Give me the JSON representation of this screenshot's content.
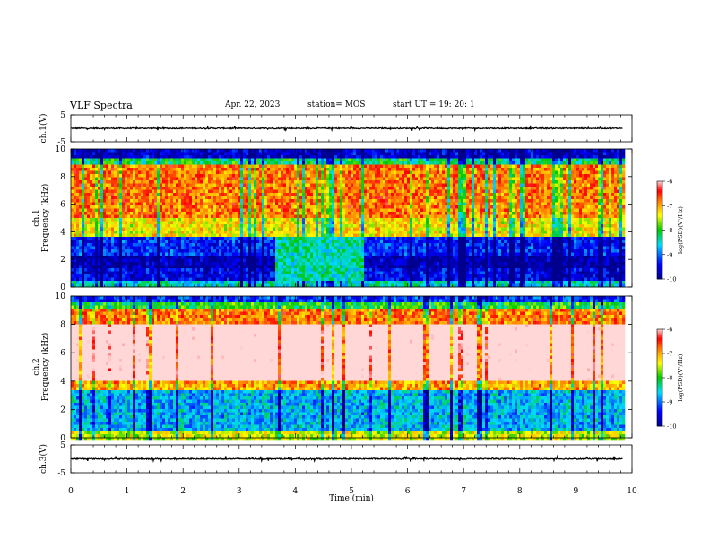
{
  "header": {
    "title": "VLF Spectra",
    "date": "Apr. 22, 2023",
    "station": "station= MOS",
    "start": "start  UT =   19: 20: 1"
  },
  "colors": {
    "low": "#00008c",
    "mid_low": "#00c8ff",
    "mid": "#00c800",
    "mid_high": "#ffff00",
    "high": "#ff0000",
    "saturated": "#ffd0d0"
  },
  "chart_data": [
    {
      "type": "line",
      "name": "ch1-waveform",
      "ylabel": "ch.1(V)",
      "ylim": [
        -5,
        5
      ],
      "yticks": [
        "5",
        "-5"
      ],
      "xlim": [
        0,
        10
      ],
      "level": 0
    },
    {
      "type": "heatmap",
      "name": "ch1-spectrogram",
      "ylabel": "ch.1\nFrequency (kHz)",
      "ylabel_line1": "ch.1",
      "ylabel_line2": "Frequency (kHz)",
      "xlim": [
        0,
        9.85
      ],
      "ylim": [
        0,
        10
      ],
      "yticks": [
        "0",
        "2",
        "4",
        "6",
        "8",
        "10"
      ],
      "colorbar": {
        "label": "log(PSD)(V²/Hz)",
        "range": [
          -10,
          -6
        ],
        "ticks": [
          "-6",
          "-7",
          "-8",
          "-9",
          "-10"
        ]
      },
      "bands_kHz": [
        {
          "from": 0,
          "to": 0.5,
          "level": -8.5
        },
        {
          "from": 0.5,
          "to": 1.5,
          "level": -9.5
        },
        {
          "from": 1.5,
          "to": 2.5,
          "level": -9.8
        },
        {
          "from": 2.5,
          "to": 3.8,
          "level": -9.3
        },
        {
          "from": 3.8,
          "to": 5.2,
          "level": -7.3
        },
        {
          "from": 5.2,
          "to": 9.0,
          "level": -6.8
        },
        {
          "from": 9.0,
          "to": 9.5,
          "level": -8.2
        },
        {
          "from": 9.5,
          "to": 10,
          "level": -9.6
        }
      ],
      "enhanced_noise": {
        "t_from": 3.6,
        "t_to": 5.2,
        "f_from": 0.5,
        "f_to": 4,
        "level": -8.4
      }
    },
    {
      "type": "heatmap",
      "name": "ch2-spectrogram",
      "ylabel": "ch.2\nFrequency (kHz)",
      "ylabel_line1": "ch.2",
      "ylabel_line2": "Frequency (kHz)",
      "xlim": [
        0,
        9.85
      ],
      "ylim": [
        0,
        10
      ],
      "yticks": [
        "0",
        "2",
        "4",
        "6",
        "8",
        "10"
      ],
      "colorbar": {
        "label": "log(PSD)(V²/Hz)",
        "range": [
          -10,
          -6
        ],
        "ticks": [
          "-6",
          "-7",
          "-8",
          "-9",
          "-10"
        ]
      },
      "bands_kHz": [
        {
          "from": 0,
          "to": 0.6,
          "level": -7.5
        },
        {
          "from": 0.6,
          "to": 3.4,
          "level": -8.7
        },
        {
          "from": 3.4,
          "to": 4.2,
          "level": -7.0
        },
        {
          "from": 4.2,
          "to": 8.2,
          "level": -5.5
        },
        {
          "from": 8.2,
          "to": 9.2,
          "level": -6.8
        },
        {
          "from": 9.2,
          "to": 9.7,
          "level": -8.0
        },
        {
          "from": 9.7,
          "to": 10,
          "level": -9.2
        }
      ]
    },
    {
      "type": "line",
      "name": "ch3-waveform",
      "ylabel": "ch.3(V)",
      "ylim": [
        -5,
        5
      ],
      "yticks": [
        "5",
        "-5"
      ],
      "xlim": [
        0,
        10
      ],
      "level": 0
    }
  ],
  "x_axis": {
    "label": "Time (min)",
    "range": [
      0,
      10
    ],
    "ticks": [
      "0",
      "1",
      "2",
      "3",
      "4",
      "5",
      "6",
      "7",
      "8",
      "9",
      "10"
    ]
  }
}
